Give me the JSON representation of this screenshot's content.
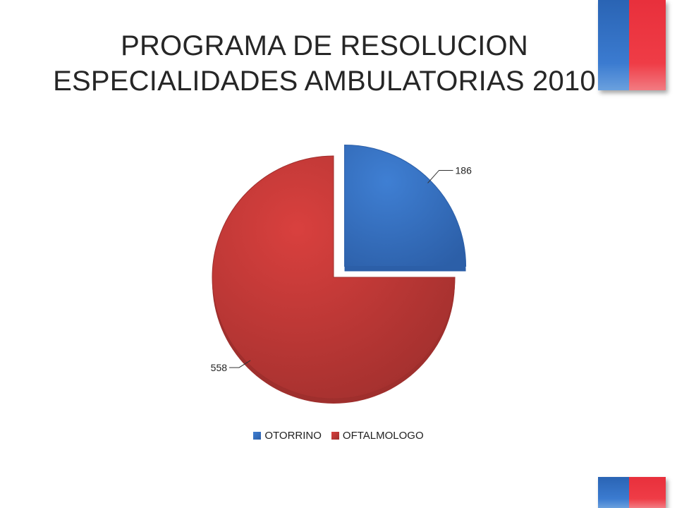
{
  "title_lines": [
    "PROGRAMA DE RESOLUCION",
    "ESPECIALIDADES AMBULATORIAS   2010"
  ],
  "colors": {
    "flag_blue": "#2a64b4",
    "flag_red": "#e8303c"
  },
  "chart_data": {
    "type": "pie",
    "title": "PROGRAMA DE RESOLUCION ESPECIALIDADES AMBULATORIAS   2010",
    "legend_position": "bottom",
    "exploded": "OTORRINO",
    "slices": [
      {
        "label": "OTORRINO",
        "value": 186,
        "value_label": "186",
        "color": "#3f7fd3",
        "color_dark": "#2c5fa8"
      },
      {
        "label": "OFTALMOLOGO",
        "value": 558,
        "value_label": "558",
        "color": "#d9403e",
        "color_dark": "#9f2f2d"
      }
    ]
  }
}
